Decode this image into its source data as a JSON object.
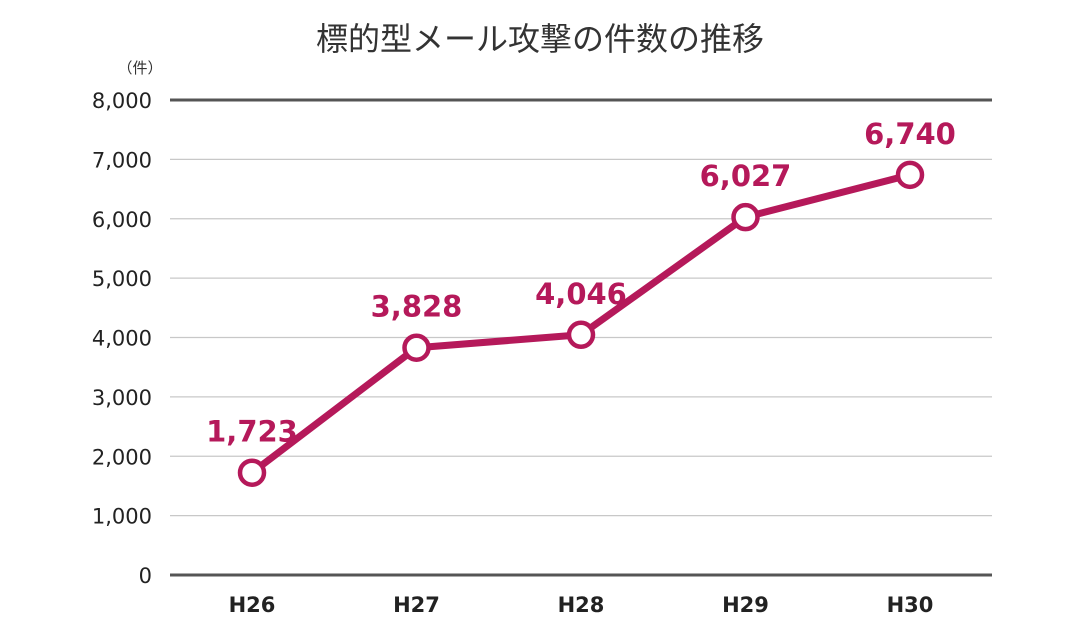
{
  "chart_data": {
    "type": "line",
    "title": "標的型メール攻撃の件数の推移",
    "unit_label": "（件）",
    "xlabel": "",
    "ylabel": "",
    "categories": [
      "H26",
      "H27",
      "H28",
      "H29",
      "H30"
    ],
    "series": [
      {
        "values": [
          1723,
          3828,
          4046,
          6027,
          6740
        ],
        "value_labels": [
          "1,723",
          "3,828",
          "4,046",
          "6,027",
          "6,740"
        ]
      }
    ],
    "ylim": [
      0,
      8000
    ],
    "yticks": [
      0,
      1000,
      2000,
      3000,
      4000,
      5000,
      6000,
      7000,
      8000
    ],
    "ytick_labels": [
      "0",
      "1,000",
      "2,000",
      "3,000",
      "4,000",
      "5,000",
      "6,000",
      "7,000",
      "8,000"
    ],
    "grid": true,
    "legend": "none",
    "colors": {
      "series": "#b5195a",
      "grid": "#c8c8c8",
      "axis": "#555555",
      "text": "#222222"
    }
  }
}
